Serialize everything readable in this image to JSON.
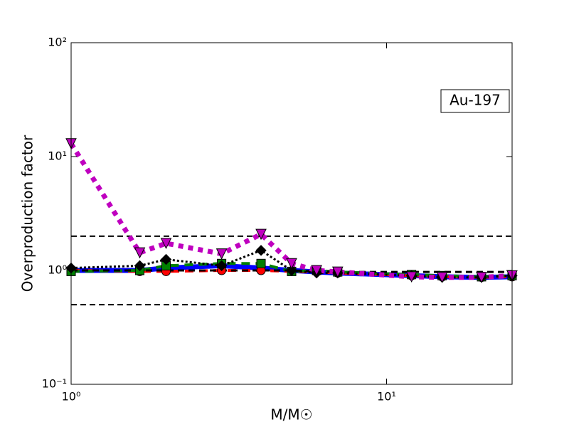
{
  "chart_data": {
    "type": "line",
    "annotation": "Au-197",
    "x_label": "M/M☉",
    "y_label": "Overproduction factor",
    "log_x": true,
    "log_y": true,
    "xlim": [
      1,
      25
    ],
    "ylim": [
      0.1,
      100
    ],
    "xticks": [
      {
        "value": 1,
        "label": "10⁰"
      },
      {
        "value": 10,
        "label": "10¹"
      }
    ],
    "yticks": [
      {
        "value": 0.1,
        "label": "10⁻¹"
      },
      {
        "value": 1,
        "label": "10⁰"
      },
      {
        "value": 10,
        "label": "10¹"
      },
      {
        "value": 100,
        "label": "10²"
      }
    ],
    "reference_lines": [
      2,
      0.5
    ],
    "x": [
      1,
      1.65,
      2,
      3,
      4,
      5,
      6,
      7,
      12,
      15,
      20,
      25
    ],
    "series": [
      {
        "color": "#0000ff",
        "line_style": "solid",
        "line_width": 7,
        "marker": "none",
        "values": [
          1.0,
          1.0,
          1.05,
          1.1,
          1.05,
          1.0,
          0.97,
          0.95,
          0.9,
          0.88,
          0.87,
          0.88
        ]
      },
      {
        "color": "#ff0000",
        "line_style": "dashed",
        "line_width": 4,
        "marker": "circle",
        "values": [
          1.0,
          0.98,
          0.98,
          1.0,
          1.0,
          0.98,
          0.97,
          0.95,
          0.9,
          0.88,
          0.87,
          0.88
        ]
      },
      {
        "color": "#008000",
        "line_style": "dashed",
        "line_width": 4,
        "marker": "square",
        "values": [
          0.98,
          1.0,
          1.1,
          1.15,
          1.15,
          0.98,
          1.0,
          0.97,
          0.92,
          0.9,
          0.88,
          0.9
        ]
      },
      {
        "color": "#000000",
        "line_style": "dashed",
        "line_width": 3,
        "marker": "none",
        "values": [
          1.0,
          1.0,
          1.0,
          1.0,
          1.0,
          1.0,
          0.98,
          0.97,
          0.97,
          0.97,
          0.97,
          0.97
        ]
      },
      {
        "color": "#000000",
        "line_style": "dotted",
        "line_width": 3,
        "marker": "diamond",
        "values": [
          1.05,
          1.1,
          1.25,
          1.1,
          1.5,
          1.0,
          0.95,
          0.95,
          0.9,
          0.87,
          0.87,
          0.9
        ]
      },
      {
        "color": "#bf00bf",
        "line_style": "dotted",
        "line_width": 7,
        "marker": "triangle-down",
        "values": [
          13,
          1.43,
          1.73,
          1.4,
          2.08,
          1.15,
          1.0,
          0.97,
          0.88,
          0.87,
          0.87,
          0.9
        ]
      }
    ]
  }
}
